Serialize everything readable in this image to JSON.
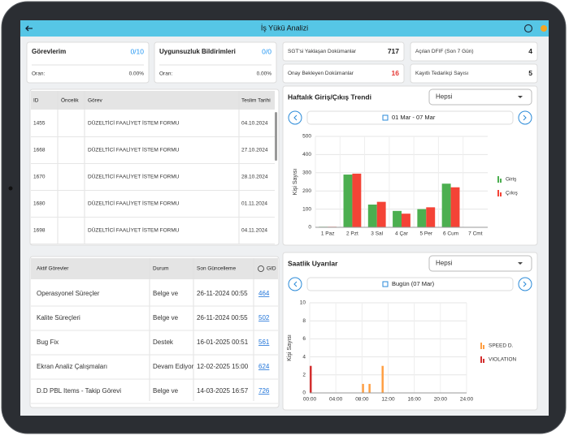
{
  "header": {
    "title": "İş Yükü Analizi"
  },
  "summary_cards": [
    {
      "title": "Görevlerim",
      "value": "0/10",
      "rate_label": "Oran:",
      "rate": "0.00%"
    },
    {
      "title": "Uygunsuzluk Bildirimleri",
      "value": "0/0",
      "rate_label": "Oran:",
      "rate": "0.00%"
    }
  ],
  "stat_cards": [
    {
      "label": "SGT'si Yaklaşan Dokümanlar",
      "value": 717,
      "color": "#222222"
    },
    {
      "label": "Açılan DFIF (Son 7 Gün)",
      "value": 4,
      "color": "#222222"
    },
    {
      "label": "Onay Bekleyen Dokümanlar",
      "value": 16,
      "color": "#e53935"
    },
    {
      "label": "Kayıtlı Tedarikçi Sayısı",
      "value": 5,
      "color": "#222222"
    }
  ],
  "tasks_table": {
    "columns": [
      "ID",
      "Öncelik",
      "Görev",
      "Teslim Tarihi"
    ],
    "rows": [
      [
        "1455",
        "",
        "DÜZELTİCİ FAALİYET İSTEM FORMU",
        "04.10.2024"
      ],
      [
        "1668",
        "",
        "DÜZELTİCİ FAALİYET İSTEM FORMU",
        "27.10.2024"
      ],
      [
        "1670",
        "",
        "DÜZELTİCİ FAALİYET İSTEM FORMU",
        "28.10.2024"
      ],
      [
        "1680",
        "",
        "DÜZELTİCİ FAALİYET İSTEM FORMU",
        "01.11.2024"
      ],
      [
        "1698",
        "",
        "DÜZELTİCİ FAALİYET İSTEM FORMU",
        "04.11.2024"
      ]
    ]
  },
  "active_table": {
    "columns": [
      "Aktif Görevler",
      "Durum",
      "Son Güncelleme",
      "GID"
    ],
    "rows": [
      [
        "Operasyonel Süreçler",
        "Belge ve",
        "26-11-2024 00:55",
        "464"
      ],
      [
        "Kalite Süreçleri",
        "Belge ve",
        "26-11-2024 00:55",
        "502"
      ],
      [
        "Bug Fix",
        "Destek",
        "16-01-2025 00:51",
        "561"
      ],
      [
        "Ekran Analiz Çalışmaları",
        "Devam Ediyor",
        "12-02-2025 15:00",
        "624"
      ],
      [
        "D.D PBL Items - Takip Görevi",
        "Belge ve",
        "14-03-2025 16:57",
        "726"
      ]
    ]
  },
  "chart_data": [
    {
      "type": "bar",
      "title": "Haftalık Giriş/Çıkış Trendi",
      "filter": "Hepsi",
      "period": "01 Mar - 07 Mar",
      "y_label": "Kişi Sayısı",
      "categories": [
        "1 Paz",
        "2 Pzt",
        "3 Sal",
        "4 Çar",
        "5 Per",
        "6 Cum",
        "7 Cmt"
      ],
      "series": [
        {
          "name": "Giriş",
          "color": "#4caf50",
          "values": [
            3,
            290,
            125,
            90,
            100,
            240,
            0
          ]
        },
        {
          "name": "Çıkış",
          "color": "#f44336",
          "values": [
            3,
            295,
            140,
            75,
            110,
            220,
            2
          ]
        }
      ],
      "ylim": [
        0,
        500
      ],
      "yticks": [
        0,
        100,
        200,
        300,
        400,
        500
      ],
      "grid": true
    },
    {
      "type": "histogram",
      "title": "Saatlik Uyarılar",
      "filter": "Hepsi",
      "period": "Bugün (07 Mar)",
      "y_label": "Kişi Sayısı",
      "series": [
        {
          "name": "SPEED D.",
          "color": "#ff9f43",
          "x": [
            8,
            9,
            11
          ],
          "values": [
            1,
            1,
            3
          ]
        },
        {
          "name": "VIOLATION",
          "color": "#d32f2f",
          "x": [
            0
          ],
          "values": [
            3
          ]
        }
      ],
      "xlim": [
        0,
        24
      ],
      "xticks": [
        {
          "value": 0,
          "label": "00:00"
        },
        {
          "value": 4,
          "label": "04:00"
        },
        {
          "value": 8,
          "label": "08:00"
        },
        {
          "value": 12,
          "label": "12:00"
        },
        {
          "value": 16,
          "label": "16:00"
        },
        {
          "value": 20,
          "label": "20:00"
        },
        {
          "value": 24,
          "label": "24:00"
        }
      ],
      "ylim": [
        0,
        10
      ],
      "yticks": [
        0,
        2,
        4,
        6,
        8,
        10
      ],
      "grid": true
    }
  ]
}
